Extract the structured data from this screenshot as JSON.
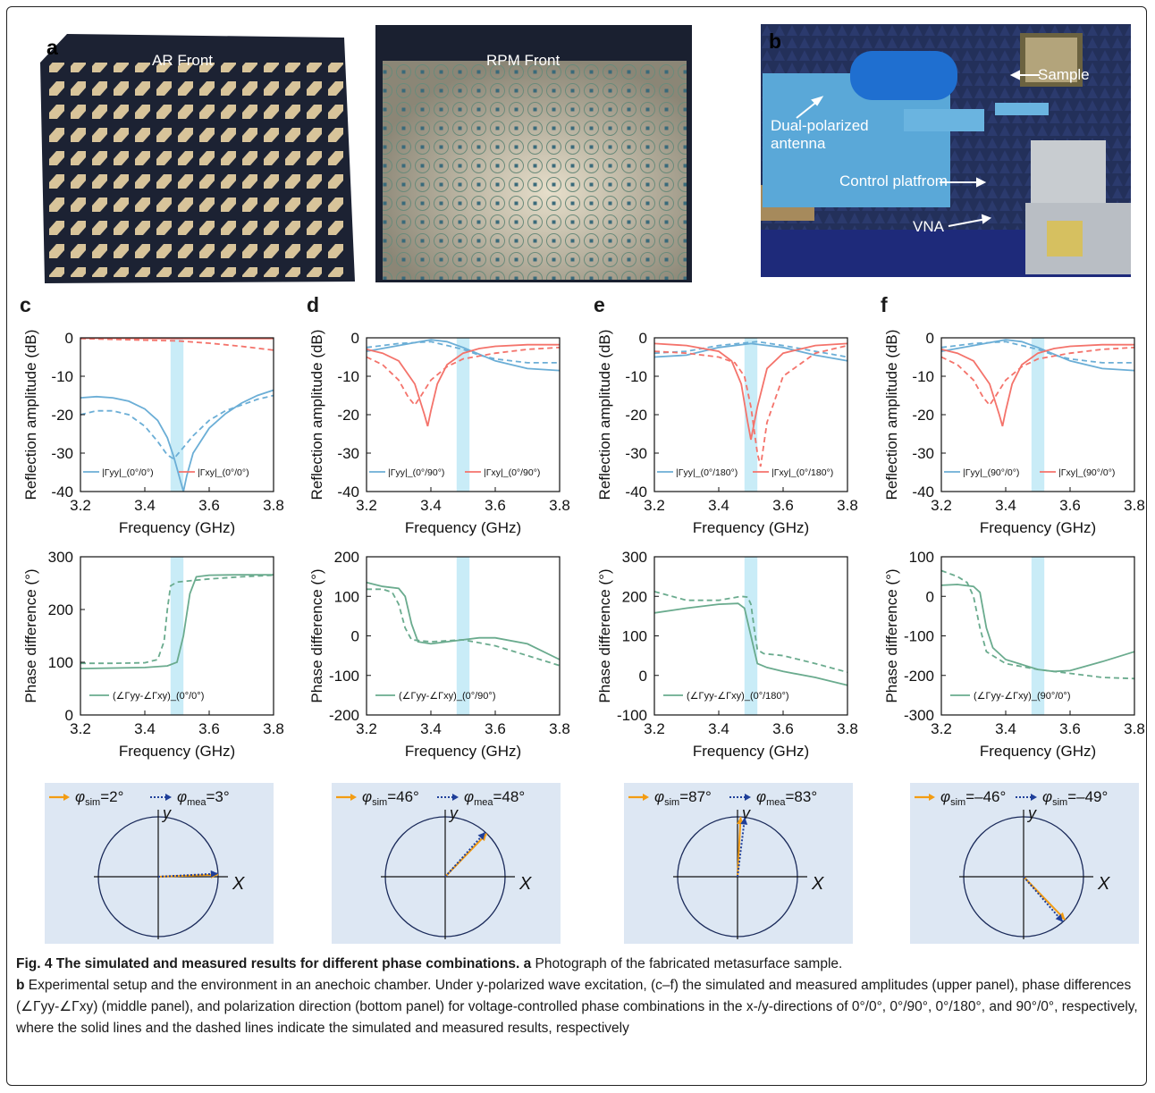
{
  "panel_letters": {
    "a": "a",
    "b": "b",
    "c": "c",
    "d": "d",
    "e": "e",
    "f": "f"
  },
  "photos": {
    "ar_label": "AR Front",
    "rpm_label": "RPM Front",
    "setup_labels": {
      "sample": "Sample",
      "antenna_line1": "Dual-polarized",
      "antenna_line2": "antenna",
      "control": "Control platfrom",
      "vna": "VNA"
    }
  },
  "colors": {
    "blue": "#6baed6",
    "red": "#f4736b",
    "green": "#6aab8e",
    "band": "#c9ecf7",
    "arrow_orange": "#f39c12",
    "arrow_blue": "#1f3f99",
    "polar_bg": "#dde7f3",
    "circle": "#1a2a5a"
  },
  "common": {
    "xlabel": "Frequency (GHz)",
    "ylabel_amp": "Reflection amplitude (dB)",
    "ylabel_phase": "Phase difference (°)",
    "xticks": [
      "3.2",
      "3.4",
      "3.6",
      "3.8"
    ],
    "amp_ticks": [
      "0",
      "-10",
      "-20",
      "-30",
      "-40"
    ],
    "band": [
      3.48,
      3.52
    ]
  },
  "chart_data": [
    {
      "type": "line",
      "panel": "c",
      "metric": "amplitude",
      "xlim": [
        3.2,
        3.8
      ],
      "ylim": [
        -40,
        0
      ],
      "legend": [
        "|Γyy|_(0°/0°)",
        "|Γxy|_(0°/0°)"
      ],
      "series": [
        {
          "kind": "yy-sim",
          "x": [
            3.2,
            3.25,
            3.3,
            3.35,
            3.4,
            3.44,
            3.47,
            3.49,
            3.51,
            3.52,
            3.53,
            3.55,
            3.6,
            3.65,
            3.7,
            3.75,
            3.8
          ],
          "values": [
            -15.6,
            -15.3,
            -15.6,
            -16.5,
            -18.5,
            -21.5,
            -26,
            -31,
            -37,
            -40,
            -36,
            -30,
            -23.5,
            -19.8,
            -17,
            -15,
            -13.6
          ]
        },
        {
          "kind": "yy-mea",
          "x": [
            3.2,
            3.25,
            3.3,
            3.35,
            3.4,
            3.44,
            3.47,
            3.49,
            3.5,
            3.52,
            3.55,
            3.6,
            3.65,
            3.7,
            3.75,
            3.8
          ],
          "values": [
            -20,
            -19,
            -19,
            -20,
            -23,
            -27,
            -30.5,
            -31.5,
            -30.5,
            -28.5,
            -25.5,
            -21.5,
            -19,
            -17.5,
            -16,
            -15
          ]
        },
        {
          "kind": "xy-sim",
          "x": [
            3.2,
            3.4,
            3.5,
            3.6,
            3.8
          ],
          "values": [
            -0.1,
            -0.15,
            -0.2,
            -0.2,
            -0.2
          ]
        },
        {
          "kind": "xy-mea",
          "x": [
            3.2,
            3.3,
            3.4,
            3.5,
            3.6,
            3.7,
            3.8
          ],
          "values": [
            -0.2,
            -0.4,
            -0.6,
            -0.8,
            -1.4,
            -2.2,
            -3.2
          ]
        }
      ]
    },
    {
      "type": "line",
      "panel": "d",
      "metric": "amplitude",
      "xlim": [
        3.2,
        3.8
      ],
      "ylim": [
        -40,
        0
      ],
      "legend": [
        "|Γyy|_(0°/90°)",
        "|Γxy|_(0°/90°)"
      ],
      "series": [
        {
          "kind": "yy-sim",
          "x": [
            3.2,
            3.3,
            3.4,
            3.45,
            3.5,
            3.6,
            3.7,
            3.8
          ],
          "values": [
            -3.5,
            -2,
            -0.5,
            -1,
            -2.5,
            -6,
            -8,
            -8.5
          ]
        },
        {
          "kind": "yy-mea",
          "x": [
            3.2,
            3.3,
            3.4,
            3.5,
            3.55,
            3.6,
            3.7,
            3.8
          ],
          "values": [
            -2.5,
            -1.5,
            -1,
            -3,
            -4.5,
            -5.5,
            -6.5,
            -6.5
          ]
        },
        {
          "kind": "xy-sim",
          "x": [
            3.2,
            3.25,
            3.3,
            3.35,
            3.38,
            3.39,
            3.4,
            3.42,
            3.45,
            3.5,
            3.55,
            3.6,
            3.7,
            3.8
          ],
          "values": [
            -3,
            -4,
            -6,
            -12,
            -20,
            -23,
            -19,
            -12,
            -7,
            -4,
            -2.8,
            -2.2,
            -1.8,
            -1.8
          ]
        },
        {
          "kind": "xy-mea",
          "x": [
            3.2,
            3.25,
            3.3,
            3.33,
            3.35,
            3.37,
            3.4,
            3.45,
            3.5,
            3.6,
            3.7,
            3.8
          ],
          "values": [
            -5,
            -7,
            -11,
            -15.5,
            -17.5,
            -15,
            -11,
            -7.5,
            -5.5,
            -4,
            -3,
            -2.5
          ]
        }
      ]
    },
    {
      "type": "line",
      "panel": "e",
      "metric": "amplitude",
      "xlim": [
        3.2,
        3.8
      ],
      "ylim": [
        -40,
        0
      ],
      "legend": [
        "|Γyy|_(0°/180°)",
        "|Γxy|_(0°/180°)"
      ],
      "series": [
        {
          "kind": "yy-sim",
          "x": [
            3.2,
            3.3,
            3.4,
            3.5,
            3.6,
            3.7,
            3.8
          ],
          "values": [
            -5,
            -4.5,
            -2.5,
            -1.5,
            -2.5,
            -4.5,
            -6
          ]
        },
        {
          "kind": "yy-mea",
          "x": [
            3.2,
            3.3,
            3.4,
            3.52,
            3.6,
            3.7,
            3.8
          ],
          "values": [
            -4,
            -3.5,
            -2,
            -1,
            -2,
            -3.5,
            -5
          ]
        },
        {
          "kind": "xy-sim",
          "x": [
            3.2,
            3.3,
            3.4,
            3.44,
            3.47,
            3.49,
            3.5,
            3.52,
            3.55,
            3.6,
            3.7,
            3.8
          ],
          "values": [
            -1.5,
            -2,
            -3.5,
            -6,
            -12,
            -22,
            -26.5,
            -18,
            -8,
            -4,
            -2,
            -1.5
          ]
        },
        {
          "kind": "xy-mea",
          "x": [
            3.2,
            3.3,
            3.4,
            3.45,
            3.48,
            3.5,
            3.52,
            3.53,
            3.55,
            3.6,
            3.7,
            3.8
          ],
          "values": [
            -3.5,
            -4,
            -5,
            -6.5,
            -10,
            -18,
            -30,
            -33.5,
            -22,
            -10,
            -4,
            -2
          ]
        }
      ]
    },
    {
      "type": "line",
      "panel": "f",
      "metric": "amplitude",
      "xlim": [
        3.2,
        3.8
      ],
      "ylim": [
        -40,
        0
      ],
      "legend": [
        "|Γyy|_(90°/0°)",
        "|Γxy|_(90°/0°)"
      ],
      "series": [
        {
          "kind": "yy-sim",
          "x": [
            3.2,
            3.3,
            3.4,
            3.45,
            3.5,
            3.6,
            3.7,
            3.8
          ],
          "values": [
            -3.5,
            -2,
            -0.5,
            -1,
            -2.5,
            -6,
            -8,
            -8.5
          ]
        },
        {
          "kind": "yy-mea",
          "x": [
            3.2,
            3.3,
            3.4,
            3.5,
            3.55,
            3.6,
            3.7,
            3.8
          ],
          "values": [
            -2.5,
            -1.5,
            -1,
            -3,
            -4.5,
            -5.5,
            -6.5,
            -6.5
          ]
        },
        {
          "kind": "xy-sim",
          "x": [
            3.2,
            3.25,
            3.3,
            3.35,
            3.38,
            3.39,
            3.4,
            3.42,
            3.45,
            3.5,
            3.55,
            3.6,
            3.7,
            3.8
          ],
          "values": [
            -3,
            -4,
            -6,
            -12,
            -20,
            -23,
            -19,
            -12,
            -7,
            -4,
            -2.8,
            -2.2,
            -1.8,
            -1.8
          ]
        },
        {
          "kind": "xy-mea",
          "x": [
            3.2,
            3.25,
            3.3,
            3.33,
            3.35,
            3.37,
            3.4,
            3.45,
            3.5,
            3.6,
            3.7,
            3.8
          ],
          "values": [
            -5,
            -7,
            -11,
            -15.5,
            -17.5,
            -15,
            -11,
            -7.5,
            -5.5,
            -4,
            -3,
            -2.5
          ]
        }
      ]
    },
    {
      "type": "line",
      "panel": "c",
      "metric": "phase",
      "xlim": [
        3.2,
        3.8
      ],
      "ylim": [
        0,
        300
      ],
      "yticks": [
        "300",
        "200",
        "100",
        "0"
      ],
      "legend": [
        "(∠Γyy-∠Γxy)_(0°/0°)"
      ],
      "series": [
        {
          "kind": "sim",
          "x": [
            3.2,
            3.3,
            3.4,
            3.47,
            3.5,
            3.52,
            3.54,
            3.56,
            3.6,
            3.7,
            3.8
          ],
          "values": [
            88,
            89,
            90,
            93,
            100,
            150,
            230,
            262,
            265,
            266,
            266
          ]
        },
        {
          "kind": "mea",
          "x": [
            3.2,
            3.3,
            3.4,
            3.44,
            3.46,
            3.47,
            3.48,
            3.5,
            3.55,
            3.6,
            3.7,
            3.8
          ],
          "values": [
            98,
            98,
            99,
            105,
            140,
            200,
            245,
            252,
            255,
            258,
            262,
            265
          ]
        }
      ]
    },
    {
      "type": "line",
      "panel": "d",
      "metric": "phase",
      "xlim": [
        3.2,
        3.8
      ],
      "ylim": [
        -200,
        200
      ],
      "yticks": [
        "200",
        "100",
        "0",
        "-100",
        "-200"
      ],
      "legend": [
        "(∠Γyy-∠Γxy)_(0°/90°)"
      ],
      "series": [
        {
          "kind": "sim",
          "x": [
            3.2,
            3.25,
            3.3,
            3.32,
            3.34,
            3.36,
            3.4,
            3.5,
            3.55,
            3.6,
            3.7,
            3.8
          ],
          "values": [
            135,
            125,
            120,
            100,
            30,
            -15,
            -20,
            -10,
            -5,
            -5,
            -20,
            -60
          ]
        },
        {
          "kind": "mea",
          "x": [
            3.2,
            3.25,
            3.28,
            3.3,
            3.32,
            3.34,
            3.4,
            3.5,
            3.6,
            3.7,
            3.8
          ],
          "values": [
            118,
            118,
            110,
            80,
            20,
            -10,
            -15,
            -10,
            -25,
            -50,
            -75
          ]
        }
      ]
    },
    {
      "type": "line",
      "panel": "e",
      "metric": "phase",
      "xlim": [
        3.2,
        3.8
      ],
      "ylim": [
        -100,
        300
      ],
      "yticks": [
        "300",
        "200",
        "100",
        "0",
        "-100"
      ],
      "legend": [
        "(∠Γyy-∠Γxy)_(0°/180°)"
      ],
      "series": [
        {
          "kind": "sim",
          "x": [
            3.2,
            3.3,
            3.4,
            3.46,
            3.48,
            3.5,
            3.52,
            3.55,
            3.6,
            3.7,
            3.8
          ],
          "values": [
            158,
            170,
            180,
            182,
            170,
            100,
            30,
            20,
            10,
            -5,
            -25
          ]
        },
        {
          "kind": "mea",
          "x": [
            3.2,
            3.3,
            3.4,
            3.47,
            3.49,
            3.5,
            3.51,
            3.52,
            3.54,
            3.6,
            3.7,
            3.8
          ],
          "values": [
            212,
            190,
            190,
            200,
            198,
            180,
            120,
            65,
            55,
            50,
            30,
            8
          ]
        }
      ]
    },
    {
      "type": "line",
      "panel": "f",
      "metric": "phase",
      "xlim": [
        3.2,
        3.8
      ],
      "ylim": [
        -300,
        100
      ],
      "yticks": [
        "100",
        "0",
        "-100",
        "-200",
        "-300"
      ],
      "legend": [
        "(∠Γyy-∠Γxy)_(90°/0°)"
      ],
      "series": [
        {
          "kind": "sim",
          "x": [
            3.2,
            3.25,
            3.3,
            3.32,
            3.34,
            3.36,
            3.4,
            3.5,
            3.55,
            3.6,
            3.7,
            3.8
          ],
          "values": [
            28,
            30,
            25,
            10,
            -80,
            -130,
            -160,
            -185,
            -190,
            -188,
            -165,
            -140
          ]
        },
        {
          "kind": "mea",
          "x": [
            3.2,
            3.25,
            3.28,
            3.3,
            3.32,
            3.34,
            3.4,
            3.5,
            3.6,
            3.7,
            3.8
          ],
          "values": [
            65,
            50,
            35,
            0,
            -80,
            -140,
            -170,
            -185,
            -195,
            -205,
            -208
          ]
        }
      ]
    }
  ],
  "polar": [
    {
      "panel": "c",
      "sim_label": "φsim=2°",
      "mea_label": "φmea=3°",
      "sim_sub": "sim",
      "mea_sub": "mea",
      "sim_prefix": "=2°",
      "mea_prefix": "=3°",
      "sim_angle": 2,
      "mea_angle": 3
    },
    {
      "panel": "d",
      "sim_label": "φsim=46°",
      "mea_label": "φmea=48°",
      "sim_sub": "sim",
      "mea_sub": "mea",
      "sim_prefix": "=46°",
      "mea_prefix": "=48°",
      "sim_angle": 46,
      "mea_angle": 48
    },
    {
      "panel": "e",
      "sim_label": "φsim=87°",
      "mea_label": "φmea=83°",
      "sim_sub": "sim",
      "mea_sub": "mea",
      "sim_prefix": "=87°",
      "mea_prefix": "=83°",
      "sim_angle": 87,
      "mea_angle": 83
    },
    {
      "panel": "f",
      "sim_label": "φsim=–46°",
      "mea_label": "φsim=–49°",
      "sim_sub": "sim",
      "mea_sub": "sim",
      "sim_prefix": "=–46°",
      "mea_prefix": "=–49°",
      "sim_angle": -46,
      "mea_angle": -49
    }
  ],
  "axis_letters": {
    "x": "X",
    "y": "y"
  },
  "caption": {
    "title": "Fig. 4 The simulated and measured results for different phase combinations.",
    "a_letter": "a",
    "a_text": " Photograph of the fabricated metasurface sample.",
    "b_letter": "b",
    "b_text": " Experimental setup and the environment in an anechoic chamber. Under y-polarized wave excitation, (c–f) the simulated and measured amplitudes (upper panel), phase differences (∠Γyy-∠Γxy) (middle panel), and polarization direction (bottom panel) for voltage-controlled phase combinations in the x-/y-directions of 0°/0°, 0°/90°, 0°/180°, and 90°/0°, respectively, where the solid lines and the dashed lines indicate the simulated and measured results, respectively"
  }
}
